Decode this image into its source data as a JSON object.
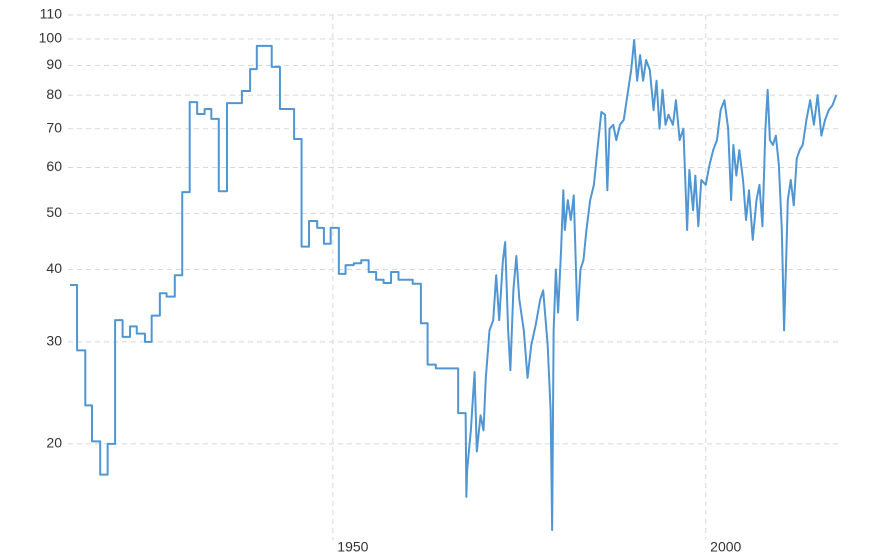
{
  "chart_data": {
    "type": "line",
    "log_y": true,
    "grid": true,
    "xlim": [
      1914.75,
      2018
    ],
    "xticks": [
      1950,
      2000
    ],
    "ylim": [
      14.2,
      110
    ],
    "yticks": [
      20,
      30,
      40,
      50,
      60,
      70,
      80,
      90,
      100,
      110
    ],
    "series": [
      {
        "color": "#5096d2",
        "x": [
          1914.75,
          1915.7,
          1915.7,
          1916.8,
          1916.8,
          1917.7,
          1917.7,
          1918.8,
          1918.8,
          1919.8,
          1919.8,
          1920.8,
          1920.8,
          1921.8,
          1921.8,
          1922.8,
          1922.8,
          1923.7,
          1923.7,
          1924.8,
          1924.8,
          1925.7,
          1925.7,
          1926.8,
          1926.8,
          1927.7,
          1927.7,
          1928.8,
          1928.8,
          1929.8,
          1929.8,
          1930.8,
          1930.8,
          1931.8,
          1931.8,
          1932.8,
          1932.8,
          1933.7,
          1933.7,
          1934.7,
          1934.7,
          1935.8,
          1935.8,
          1937.8,
          1937.8,
          1938.9,
          1938.9,
          1939.8,
          1939.8,
          1941.8,
          1941.8,
          1942.9,
          1942.9,
          1944.8,
          1944.8,
          1945.8,
          1945.8,
          1946.8,
          1946.8,
          1947.9,
          1947.9,
          1948.8,
          1948.8,
          1949.7,
          1949.7,
          1950.8,
          1950.8,
          1951.7,
          1951.7,
          1952.8,
          1952.8,
          1953.8,
          1953.8,
          1954.8,
          1954.8,
          1955.8,
          1955.8,
          1956.8,
          1956.8,
          1957.8,
          1957.8,
          1958.8,
          1958.8,
          1960.7,
          1960.7,
          1961.8,
          1961.8,
          1962.7,
          1962.7,
          1963.8,
          1963.8,
          1966.8,
          1966.8,
          1967.8,
          1967.9,
          1968,
          1968.5,
          1969,
          1969.3,
          1969.8,
          1970.2,
          1970.5,
          1971,
          1971.5,
          1971.9,
          1972.3,
          1972.8,
          1973.1,
          1973.5,
          1973.8,
          1974.2,
          1974.6,
          1975,
          1975.6,
          1976.1,
          1976.6,
          1977.2,
          1977.8,
          1978.2,
          1978.8,
          1979.2,
          1979.4,
          1979.6,
          1979.9,
          1980.2,
          1980.6,
          1980.9,
          1981.1,
          1981.5,
          1981.9,
          1982.3,
          1982.8,
          1983.2,
          1983.6,
          1984,
          1984.5,
          1985,
          1985.6,
          1986,
          1986.5,
          1986.8,
          1987.1,
          1987.6,
          1988,
          1988.5,
          1989,
          1989.6,
          1990,
          1990.4,
          1990.8,
          1991.2,
          1991.6,
          1992,
          1992.5,
          1993,
          1993.4,
          1993.8,
          1994.2,
          1994.6,
          1995,
          1995.6,
          1996,
          1996.5,
          1997,
          1997.5,
          1997.8,
          1998.3,
          1998.6,
          1999,
          1999.4,
          2000,
          2000.5,
          2001,
          2001.5,
          2002,
          2002.5,
          2003,
          2003.4,
          2003.7,
          2004.1,
          2004.5,
          2005,
          2005.4,
          2005.8,
          2006.3,
          2006.8,
          2007.2,
          2007.6,
          2008,
          2008.3,
          2008.6,
          2009,
          2009.4,
          2009.8,
          2010.2,
          2010.5,
          2010.8,
          2011,
          2011.4,
          2011.8,
          2012.2,
          2012.6,
          2013,
          2013.5,
          2014,
          2014.5,
          2015,
          2015.5,
          2016,
          2016.5,
          2017,
          2017.5
        ],
        "values": [
          37.6,
          37.6,
          29.0,
          29.0,
          23.3,
          23.3,
          20.2,
          20.2,
          17.7,
          17.7,
          20.0,
          20.0,
          32.7,
          32.7,
          30.6,
          30.6,
          31.9,
          31.9,
          31.0,
          31.0,
          30.0,
          30.0,
          33.3,
          33.3,
          36.4,
          36.4,
          35.9,
          35.9,
          39.1,
          39.1,
          54.4,
          54.4,
          77.8,
          77.8,
          74.2,
          74.2,
          75.7,
          75.7,
          72.8,
          72.8,
          54.6,
          54.6,
          77.5,
          77.5,
          81.3,
          81.3,
          88.7,
          88.7,
          97.3,
          97.3,
          89.5,
          89.5,
          75.7,
          75.7,
          67.2,
          67.2,
          43.8,
          43.8,
          48.5,
          48.5,
          47.2,
          47.2,
          44.3,
          44.3,
          47.2,
          47.2,
          39.3,
          39.3,
          40.7,
          40.7,
          41.0,
          41.0,
          41.5,
          41.5,
          39.6,
          39.6,
          38.4,
          38.4,
          37.9,
          37.9,
          39.6,
          39.6,
          38.4,
          38.4,
          37.8,
          37.8,
          32.3,
          32.3,
          27.4,
          27.4,
          27.0,
          27.0,
          22.6,
          22.6,
          16.2,
          18.0,
          21.1,
          26.6,
          19.4,
          22.4,
          21.1,
          25.9,
          31.4,
          32.7,
          39.1,
          32.7,
          41.5,
          44.6,
          31.4,
          26.8,
          36.8,
          42.2,
          35.5,
          31.4,
          26.0,
          29.6,
          32.1,
          35.5,
          36.8,
          29.6,
          22.8,
          14.2,
          31.4,
          40.0,
          33.7,
          43.2,
          54.8,
          46.8,
          52.7,
          48.7,
          53.7,
          32.7,
          40.0,
          41.5,
          46.8,
          52.7,
          56.0,
          66.9,
          74.8,
          74.0,
          54.8,
          70.0,
          71.1,
          66.9,
          71.1,
          72.5,
          81.7,
          88.4,
          99.6,
          84.7,
          93.8,
          84.7,
          92.0,
          88.4,
          75.4,
          84.7,
          70.0,
          81.7,
          71.1,
          74.0,
          71.1,
          78.4,
          66.9,
          70.0,
          46.8,
          59.4,
          50.6,
          58.1,
          47.5,
          57.1,
          56.0,
          60.6,
          64.3,
          66.9,
          75.4,
          78.4,
          70.0,
          52.7,
          65.6,
          58.1,
          64.3,
          57.1,
          48.7,
          54.8,
          45.0,
          52.7,
          56.0,
          47.5,
          70.0,
          81.7,
          66.9,
          65.6,
          68.1,
          60.6,
          46.8,
          31.4,
          42.4,
          52.7,
          57.1,
          51.6,
          62.2,
          64.3,
          65.6,
          72.5,
          78.4,
          71.1,
          80.0,
          68.1,
          72.5,
          75.4,
          76.9,
          80.0
        ]
      }
    ]
  }
}
